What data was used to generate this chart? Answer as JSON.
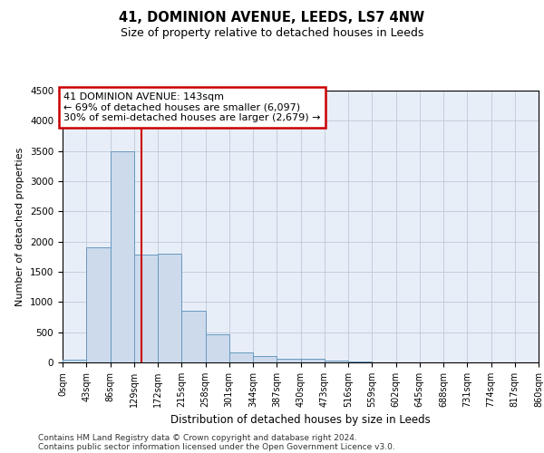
{
  "title": "41, DOMINION AVENUE, LEEDS, LS7 4NW",
  "subtitle": "Size of property relative to detached houses in Leeds",
  "xlabel": "Distribution of detached houses by size in Leeds",
  "ylabel": "Number of detached properties",
  "bar_color": "#ccdaec",
  "bar_edge_color": "#6899c0",
  "background_color": "#e8eef8",
  "grid_color": "#c0c8d8",
  "vline_x": 143,
  "vline_color": "#cc0000",
  "annotation_line1": "41 DOMINION AVENUE: 143sqm",
  "annotation_line2": "← 69% of detached houses are smaller (6,097)",
  "annotation_line3": "30% of semi-detached houses are larger (2,679) →",
  "bin_edges": [
    0,
    43,
    86,
    129,
    172,
    215,
    258,
    301,
    344,
    387,
    430,
    473,
    516,
    559,
    602,
    645,
    688,
    731,
    774,
    817,
    860
  ],
  "bar_heights": [
    38,
    1910,
    3500,
    1785,
    1800,
    848,
    460,
    158,
    98,
    63,
    55,
    28,
    10,
    4,
    3,
    2,
    1,
    1,
    1,
    1
  ],
  "ylim": [
    0,
    4500
  ],
  "yticks": [
    0,
    500,
    1000,
    1500,
    2000,
    2500,
    3000,
    3500,
    4000,
    4500
  ],
  "footnote_line1": "Contains HM Land Registry data © Crown copyright and database right 2024.",
  "footnote_line2": "Contains public sector information licensed under the Open Government Licence v3.0.",
  "title_fontsize": 10.5,
  "subtitle_fontsize": 9,
  "xlabel_fontsize": 8.5,
  "ylabel_fontsize": 8,
  "tick_fontsize": 7,
  "footnote_fontsize": 6.5,
  "ann_fontsize": 8
}
